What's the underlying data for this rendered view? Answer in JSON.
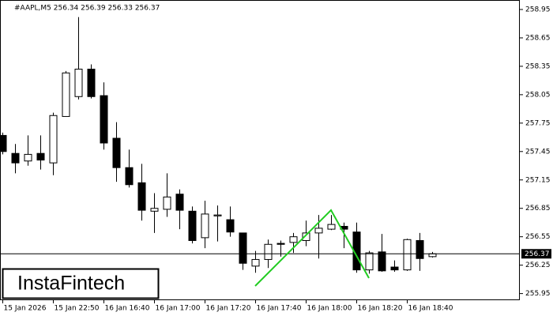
{
  "chart_data": {
    "type": "candlestick",
    "title": "#AAPL,M5  256.34 256.39 256.33 256.37",
    "brand": "InstaFintech",
    "categories": [
      "15 Jan 2026",
      null,
      null,
      null,
      "15 Jan 22:50",
      null,
      null,
      null,
      "16 Jan 16:40",
      null,
      null,
      null,
      "16 Jan 17:00",
      null,
      null,
      null,
      "16 Jan 17:20",
      null,
      null,
      null,
      "16 Jan 17:40",
      null,
      null,
      null,
      "16 Jan 18:00",
      null,
      null,
      null,
      "16 Jan 18:20",
      null,
      null,
      null,
      "16 Jan 18:40",
      null,
      null
    ],
    "open": [
      257.62,
      257.43,
      257.35,
      257.43,
      257.33,
      257.82,
      258.03,
      258.32,
      258.04,
      257.59,
      257.28,
      257.12,
      256.82,
      256.84,
      257.0,
      256.82,
      256.54,
      256.77,
      256.73,
      256.59,
      256.24,
      256.31,
      256.48,
      256.49,
      256.51,
      256.59,
      256.63,
      256.66,
      256.6,
      256.2,
      256.39,
      256.23,
      256.2,
      256.51,
      256.34
    ],
    "high": [
      257.65,
      257.53,
      257.62,
      257.62,
      257.86,
      258.3,
      258.87,
      258.37,
      258.18,
      257.76,
      257.47,
      257.32,
      257.01,
      257.22,
      257.05,
      256.87,
      256.93,
      256.88,
      256.87,
      256.59,
      256.4,
      256.52,
      256.51,
      256.59,
      256.72,
      256.78,
      256.78,
      256.7,
      256.7,
      256.4,
      256.58,
      256.3,
      256.53,
      256.59,
      256.39
    ],
    "low": [
      257.42,
      257.22,
      257.3,
      257.26,
      257.2,
      257.82,
      258.0,
      258.01,
      257.47,
      257.13,
      257.07,
      256.72,
      256.59,
      256.76,
      256.63,
      256.48,
      256.43,
      256.5,
      256.55,
      256.2,
      256.17,
      256.22,
      256.34,
      256.38,
      256.45,
      256.32,
      256.62,
      256.43,
      256.17,
      256.16,
      256.18,
      256.18,
      256.19,
      256.19,
      256.33
    ],
    "close": [
      257.45,
      257.33,
      257.42,
      257.36,
      257.83,
      258.28,
      258.32,
      258.03,
      257.54,
      257.28,
      257.1,
      256.83,
      256.85,
      256.97,
      256.83,
      256.51,
      256.79,
      256.78,
      256.6,
      256.27,
      256.31,
      256.47,
      256.47,
      256.55,
      256.59,
      256.64,
      256.68,
      256.63,
      256.2,
      256.38,
      256.19,
      256.2,
      256.52,
      256.32,
      256.37
    ],
    "up_color": "#ffffff",
    "down_color": "#000000",
    "pattern_color": "#22cc22",
    "last_price": 256.37,
    "ylim": [
      255.88,
      259.05
    ],
    "yticks": [
      255.95,
      256.25,
      256.55,
      256.85,
      257.15,
      257.45,
      257.75,
      258.05,
      258.35,
      258.65,
      258.95
    ]
  }
}
